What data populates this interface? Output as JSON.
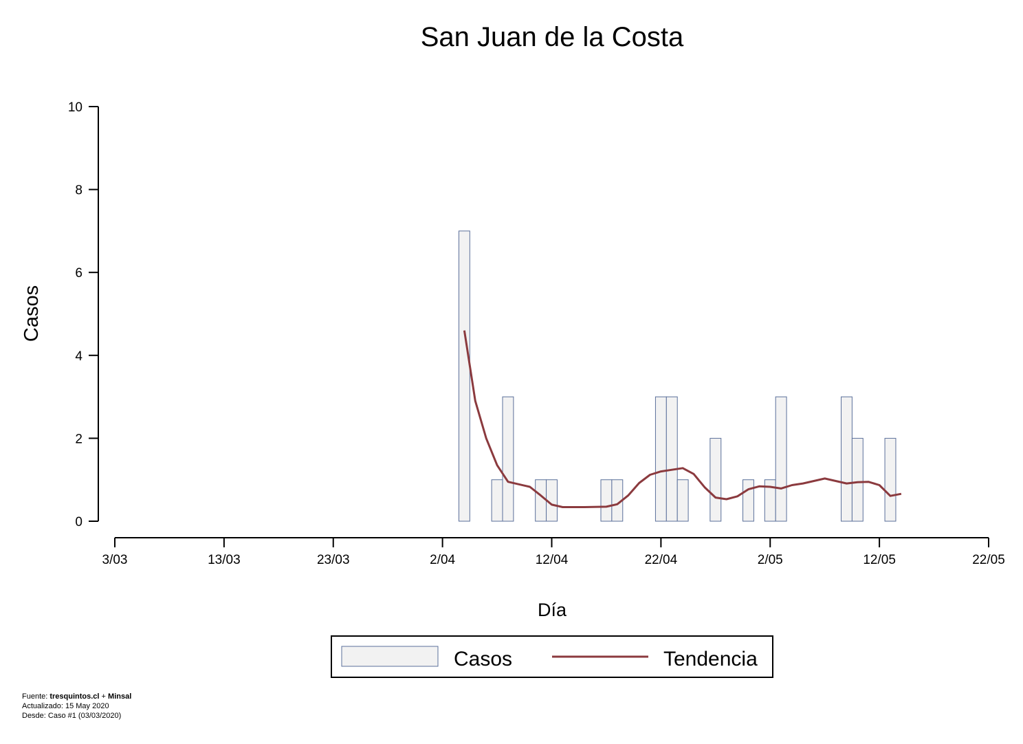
{
  "chart_data": {
    "type": "bar",
    "title": "San Juan de la Costa",
    "xlabel": "Día",
    "ylabel": "Casos",
    "ylim": [
      0,
      10
    ],
    "yticks": [
      0,
      2,
      4,
      6,
      8,
      10
    ],
    "xlim": [
      "2020-03-03",
      "2020-05-22"
    ],
    "xticks": [
      "3/03",
      "13/03",
      "23/03",
      "2/04",
      "12/04",
      "22/04",
      "2/05",
      "12/05",
      "22/05"
    ],
    "xtick_dates": [
      "2020-03-03",
      "2020-03-13",
      "2020-03-23",
      "2020-04-02",
      "2020-04-12",
      "2020-04-22",
      "2020-05-02",
      "2020-05-12",
      "2020-05-22"
    ],
    "grid": false,
    "legend_position": "bottom",
    "series": [
      {
        "name": "Casos",
        "kind": "bar",
        "color": "#f2f2f2",
        "edge_color": "#5a6f9a",
        "points": [
          {
            "date": "2020-04-04",
            "value": 7
          },
          {
            "date": "2020-04-07",
            "value": 1
          },
          {
            "date": "2020-04-08",
            "value": 3
          },
          {
            "date": "2020-04-11",
            "value": 1
          },
          {
            "date": "2020-04-12",
            "value": 1
          },
          {
            "date": "2020-04-17",
            "value": 1
          },
          {
            "date": "2020-04-18",
            "value": 1
          },
          {
            "date": "2020-04-22",
            "value": 3
          },
          {
            "date": "2020-04-23",
            "value": 3
          },
          {
            "date": "2020-04-24",
            "value": 1
          },
          {
            "date": "2020-04-27",
            "value": 2
          },
          {
            "date": "2020-04-30",
            "value": 1
          },
          {
            "date": "2020-05-02",
            "value": 1
          },
          {
            "date": "2020-05-03",
            "value": 3
          },
          {
            "date": "2020-05-09",
            "value": 3
          },
          {
            "date": "2020-05-10",
            "value": 2
          },
          {
            "date": "2020-05-13",
            "value": 2
          }
        ]
      },
      {
        "name": "Tendencia",
        "kind": "line",
        "color": "#8b3a3e",
        "points": [
          {
            "date": "2020-04-04",
            "value": 4.6
          },
          {
            "date": "2020-04-05",
            "value": 2.9
          },
          {
            "date": "2020-04-06",
            "value": 2.0
          },
          {
            "date": "2020-04-07",
            "value": 1.35
          },
          {
            "date": "2020-04-08",
            "value": 0.95
          },
          {
            "date": "2020-04-10",
            "value": 0.83
          },
          {
            "date": "2020-04-11",
            "value": 0.62
          },
          {
            "date": "2020-04-12",
            "value": 0.4
          },
          {
            "date": "2020-04-13",
            "value": 0.34
          },
          {
            "date": "2020-04-15",
            "value": 0.34
          },
          {
            "date": "2020-04-17",
            "value": 0.35
          },
          {
            "date": "2020-04-18",
            "value": 0.41
          },
          {
            "date": "2020-04-19",
            "value": 0.62
          },
          {
            "date": "2020-04-20",
            "value": 0.92
          },
          {
            "date": "2020-04-21",
            "value": 1.12
          },
          {
            "date": "2020-04-22",
            "value": 1.2
          },
          {
            "date": "2020-04-23",
            "value": 1.24
          },
          {
            "date": "2020-04-24",
            "value": 1.28
          },
          {
            "date": "2020-04-25",
            "value": 1.14
          },
          {
            "date": "2020-04-26",
            "value": 0.82
          },
          {
            "date": "2020-04-27",
            "value": 0.57
          },
          {
            "date": "2020-04-28",
            "value": 0.53
          },
          {
            "date": "2020-04-29",
            "value": 0.6
          },
          {
            "date": "2020-04-30",
            "value": 0.77
          },
          {
            "date": "2020-05-01",
            "value": 0.84
          },
          {
            "date": "2020-05-02",
            "value": 0.83
          },
          {
            "date": "2020-05-03",
            "value": 0.79
          },
          {
            "date": "2020-05-04",
            "value": 0.87
          },
          {
            "date": "2020-05-05",
            "value": 0.91
          },
          {
            "date": "2020-05-07",
            "value": 1.03
          },
          {
            "date": "2020-05-09",
            "value": 0.91
          },
          {
            "date": "2020-05-10",
            "value": 0.94
          },
          {
            "date": "2020-05-11",
            "value": 0.95
          },
          {
            "date": "2020-05-12",
            "value": 0.87
          },
          {
            "date": "2020-05-13",
            "value": 0.61
          },
          {
            "date": "2020-05-14",
            "value": 0.66
          }
        ]
      }
    ]
  },
  "legend": {
    "items": [
      "Casos",
      "Tendencia"
    ]
  },
  "footer": {
    "source_label": "Fuente: ",
    "source_site": "tresquintos.cl",
    "source_sep": " + ",
    "source_org": "Minsal",
    "updated": "Actualizado: 15 May 2020",
    "since": "Desde: Caso #1  (03/03/2020)"
  }
}
